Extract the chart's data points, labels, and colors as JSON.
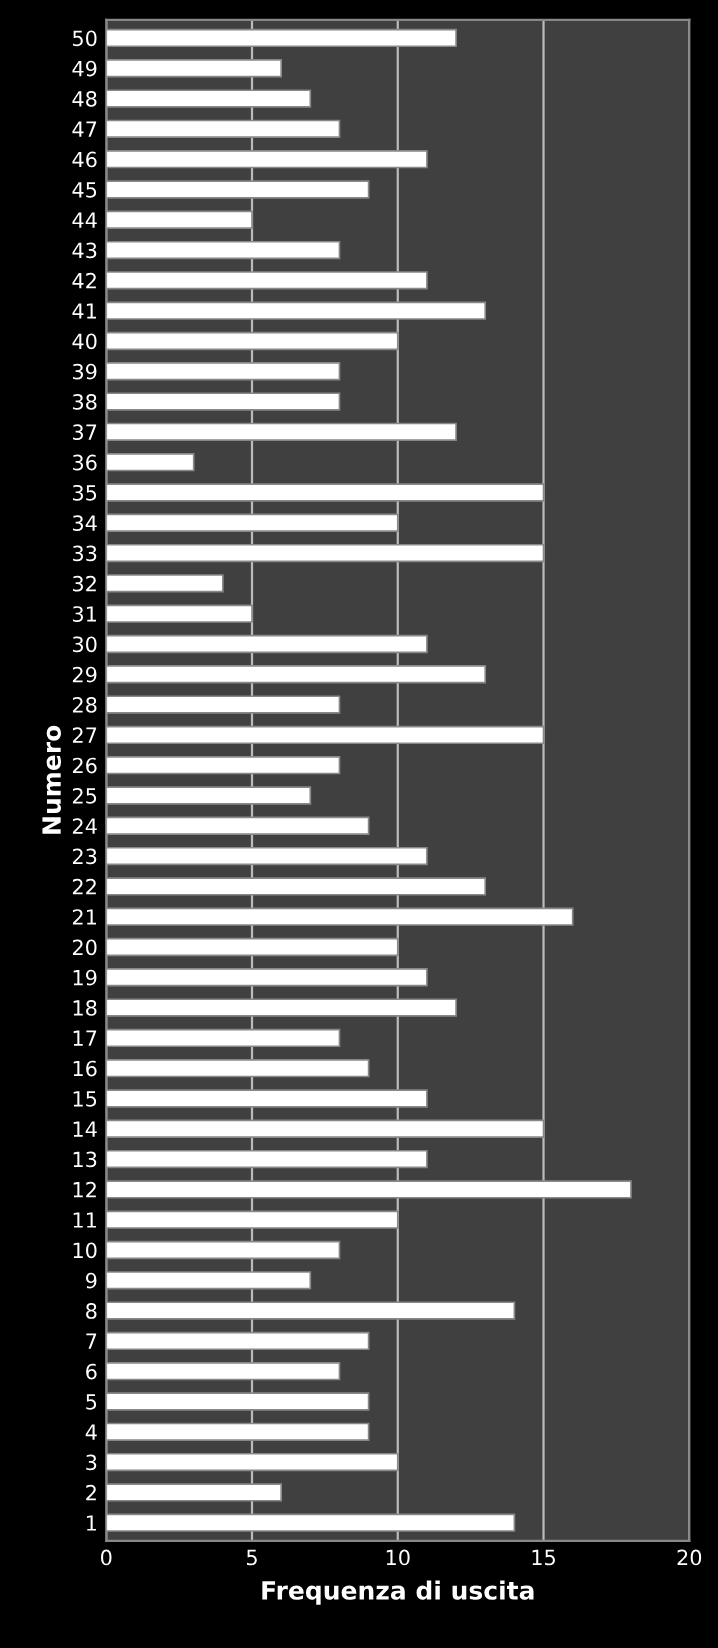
{
  "chart_data": {
    "type": "bar",
    "orientation": "horizontal",
    "xlabel": "Frequenza di uscita",
    "ylabel": "Numero",
    "categories": [
      "50",
      "49",
      "48",
      "47",
      "46",
      "45",
      "44",
      "43",
      "42",
      "41",
      "40",
      "39",
      "38",
      "37",
      "36",
      "35",
      "34",
      "33",
      "32",
      "31",
      "30",
      "29",
      "28",
      "27",
      "26",
      "25",
      "24",
      "23",
      "22",
      "21",
      "20",
      "19",
      "18",
      "17",
      "16",
      "15",
      "14",
      "13",
      "12",
      "11",
      "10",
      "9",
      "8",
      "7",
      "6",
      "5",
      "4",
      "3",
      "2",
      "1"
    ],
    "values": [
      12,
      6,
      7,
      8,
      11,
      9,
      5,
      8,
      11,
      13,
      10,
      8,
      8,
      12,
      3,
      15,
      10,
      15,
      4,
      5,
      11,
      13,
      8,
      15,
      8,
      7,
      9,
      11,
      13,
      16,
      10,
      11,
      12,
      8,
      9,
      11,
      15,
      11,
      18,
      10,
      8,
      7,
      14,
      9,
      8,
      9,
      9,
      10,
      6,
      14
    ],
    "color": "#ffffff",
    "xlim": [
      0,
      20
    ],
    "xticks": [
      0,
      5,
      10,
      15,
      20
    ],
    "grid": "x",
    "legend": false
  }
}
